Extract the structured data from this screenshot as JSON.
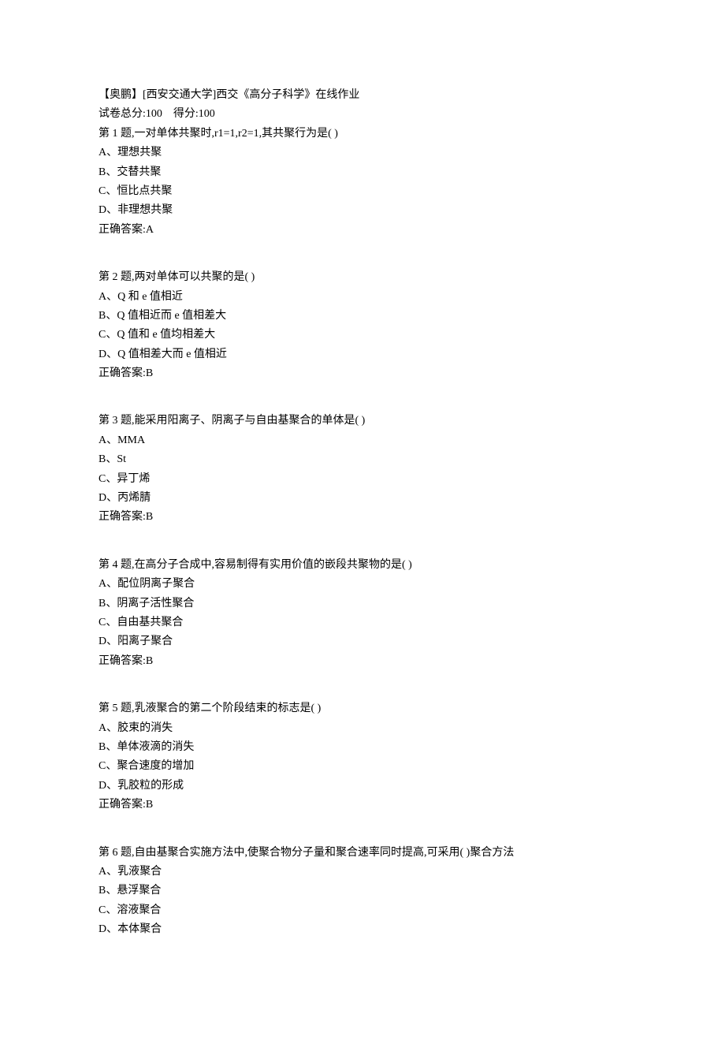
{
  "header": {
    "title": "【奥鹏】[西安交通大学]西交《高分子科学》在线作业",
    "score_line": "试卷总分:100    得分:100"
  },
  "questions": [
    {
      "prompt": "第 1 题,一对单体共聚时,r1=1,r2=1,其共聚行为是(   )",
      "options": [
        "A、理想共聚",
        "B、交替共聚",
        "C、恒比点共聚",
        "D、非理想共聚"
      ],
      "answer": "正确答案:A"
    },
    {
      "prompt": "第 2 题,两对单体可以共聚的是(    )",
      "options": [
        "A、Q 和 e 值相近",
        "B、Q 值相近而 e 值相差大",
        "C、Q 值和 e 值均相差大",
        "D、Q 值相差大而 e 值相近"
      ],
      "answer": "正确答案:B"
    },
    {
      "prompt": "第 3 题,能采用阳离子、阴离子与自由基聚合的单体是(    )",
      "options": [
        "A、MMA",
        "B、St",
        "C、异丁烯",
        "D、丙烯腈"
      ],
      "answer": "正确答案:B"
    },
    {
      "prompt": "第 4 题,在高分子合成中,容易制得有实用价值的嵌段共聚物的是(   )",
      "options": [
        "A、配位阴离子聚合",
        "B、阴离子活性聚合",
        "C、自由基共聚合",
        "D、阳离子聚合"
      ],
      "answer": "正确答案:B"
    },
    {
      "prompt": "第 5 题,乳液聚合的第二个阶段结束的标志是(    )",
      "options": [
        "A、胶束的消失",
        "B、单体液滴的消失",
        "C、聚合速度的增加",
        "D、乳胶粒的形成"
      ],
      "answer": "正确答案:B"
    },
    {
      "prompt": "第 6 题,自由基聚合实施方法中,使聚合物分子量和聚合速率同时提高,可采用(   )聚合方法",
      "options": [
        "A、乳液聚合",
        "B、悬浮聚合",
        "C、溶液聚合",
        "D、本体聚合"
      ],
      "answer": ""
    }
  ]
}
